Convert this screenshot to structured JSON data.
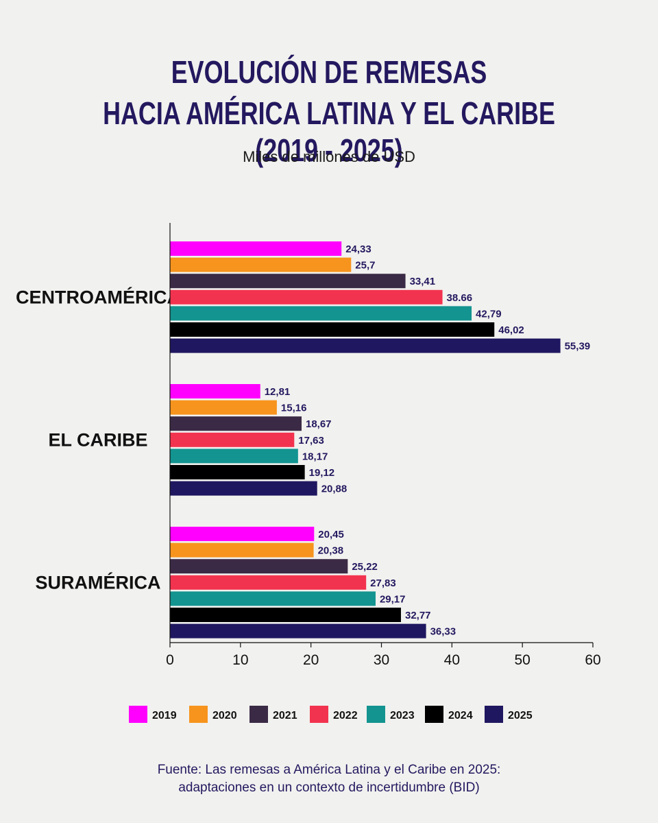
{
  "chart_data": {
    "type": "bar",
    "orientation": "horizontal",
    "title_line1": "EVOLUCIÓN DE REMESAS",
    "title_line2": "HACIA AMÉRICA LATINA Y EL CARIBE (2019 - 2025)",
    "subtitle": "Miles de millones de USD",
    "categories": [
      "CENTROAMÉRICA",
      "EL CARIBE",
      "SURAMÉRICA"
    ],
    "xlim": [
      0,
      60
    ],
    "xticks": [
      "0",
      "10",
      "20",
      "30",
      "40",
      "50",
      "60"
    ],
    "legend_position": "bottom",
    "series": [
      {
        "name": "2019",
        "color": "#ff00ff",
        "values": [
          24.33,
          12.81,
          20.45
        ],
        "labels": [
          "24,33",
          "12,81",
          "20,45"
        ]
      },
      {
        "name": "2020",
        "color": "#f7941d",
        "values": [
          25.7,
          15.16,
          20.38
        ],
        "labels": [
          "25,7",
          "15,16",
          "20,38"
        ]
      },
      {
        "name": "2021",
        "color": "#3b2a45",
        "values": [
          33.41,
          18.67,
          25.22
        ],
        "labels": [
          "33,41",
          "18,67",
          "25,22"
        ]
      },
      {
        "name": "2022",
        "color": "#f2334f",
        "values": [
          38.66,
          17.63,
          27.83
        ],
        "labels": [
          "38.66",
          "17,63",
          "27,83"
        ]
      },
      {
        "name": "2023",
        "color": "#139490",
        "values": [
          42.79,
          18.17,
          29.17
        ],
        "labels": [
          "42,79",
          "18,17",
          "29,17"
        ]
      },
      {
        "name": "2024",
        "color": "#000000",
        "values": [
          46.02,
          19.12,
          32.77
        ],
        "labels": [
          "46,02",
          "19,12",
          "32,77"
        ]
      },
      {
        "name": "2025",
        "color": "#1f1760",
        "values": [
          55.39,
          20.88,
          36.33
        ],
        "labels": [
          "55,39",
          "20,88",
          "36,33"
        ]
      }
    ],
    "source_line1": "Fuente: Las remesas a América Latina y el Caribe en 2025:",
    "source_line2": "adaptaciones en un contexto de incertidumbre (BID)"
  }
}
